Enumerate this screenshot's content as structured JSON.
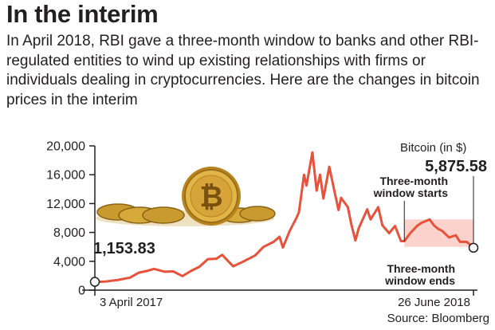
{
  "header": {
    "title": "In the interim",
    "intro": "In April 2018, RBI gave a three-month window to banks and other RBI-regulated entities to wind up existing relationships with firms or individuals dealing in cryptocurrencies. Here are the changes in bitcoin prices in the interim"
  },
  "source": "Source: Bloomberg",
  "colors": {
    "line": "#e8513a",
    "window_band": "#fbd3cc",
    "axis": "#231f20",
    "grid": "#cfcfcf"
  },
  "chart_data": {
    "type": "line",
    "series": [
      {
        "name": "Bitcoin (in $)",
        "points": [
          [
            "2017-04-03",
            1153.83
          ],
          [
            "2017-04-15",
            1180
          ],
          [
            "2017-05-01",
            1420
          ],
          [
            "2017-05-15",
            1750
          ],
          [
            "2017-05-25",
            2420
          ],
          [
            "2017-06-05",
            2700
          ],
          [
            "2017-06-12",
            2950
          ],
          [
            "2017-06-25",
            2550
          ],
          [
            "2017-07-05",
            2600
          ],
          [
            "2017-07-16",
            1950
          ],
          [
            "2017-07-25",
            2600
          ],
          [
            "2017-08-05",
            3250
          ],
          [
            "2017-08-15",
            4300
          ],
          [
            "2017-08-25",
            4350
          ],
          [
            "2017-09-01",
            4900
          ],
          [
            "2017-09-14",
            3300
          ],
          [
            "2017-09-25",
            3900
          ],
          [
            "2017-10-10",
            4800
          ],
          [
            "2017-10-20",
            6000
          ],
          [
            "2017-11-01",
            6700
          ],
          [
            "2017-11-08",
            7400
          ],
          [
            "2017-11-12",
            5900
          ],
          [
            "2017-11-20",
            8200
          ],
          [
            "2017-11-28",
            10000
          ],
          [
            "2017-12-01",
            10800
          ],
          [
            "2017-12-07",
            16000
          ],
          [
            "2017-12-10",
            14500
          ],
          [
            "2017-12-17",
            19100
          ],
          [
            "2017-12-22",
            13800
          ],
          [
            "2017-12-26",
            16000
          ],
          [
            "2017-12-30",
            12700
          ],
          [
            "2018-01-06",
            17100
          ],
          [
            "2018-01-12",
            13800
          ],
          [
            "2018-01-17",
            11100
          ],
          [
            "2018-01-20",
            12800
          ],
          [
            "2018-01-28",
            11500
          ],
          [
            "2018-02-01",
            9200
          ],
          [
            "2018-02-06",
            6900
          ],
          [
            "2018-02-10",
            8600
          ],
          [
            "2018-02-20",
            11200
          ],
          [
            "2018-02-24",
            9800
          ],
          [
            "2018-03-05",
            11500
          ],
          [
            "2018-03-10",
            9000
          ],
          [
            "2018-03-18",
            7900
          ],
          [
            "2018-03-25",
            8900
          ],
          [
            "2018-04-01",
            6800
          ],
          [
            "2018-04-05",
            6800
          ],
          [
            "2018-04-12",
            7900
          ],
          [
            "2018-04-20",
            8900
          ],
          [
            "2018-04-25",
            9300
          ],
          [
            "2018-05-05",
            9800
          ],
          [
            "2018-05-10",
            9000
          ],
          [
            "2018-05-15",
            8500
          ],
          [
            "2018-05-20",
            8200
          ],
          [
            "2018-05-28",
            7300
          ],
          [
            "2018-06-05",
            7600
          ],
          [
            "2018-06-10",
            6700
          ],
          [
            "2018-06-18",
            6700
          ],
          [
            "2018-06-26",
            5875.58
          ]
        ]
      }
    ],
    "x_range": [
      "2017-04-03",
      "2018-06-26"
    ],
    "ylim": [
      0,
      20000
    ],
    "y_ticks": [
      "0",
      "4,000",
      "8,000",
      "12,000",
      "16,000",
      "20,000"
    ],
    "y_tick_values": [
      0,
      4000,
      8000,
      12000,
      16000,
      20000
    ],
    "x_labels": [
      "3 April 2017",
      "26 June 2018"
    ],
    "ylabel": "Bitcoin (in $)",
    "start": {
      "date": "2017-04-03",
      "value": 1153.83,
      "label": "1,153.83"
    },
    "end": {
      "date": "2018-06-26",
      "value": 5875.58,
      "label": "5,875.58"
    },
    "window": {
      "start_date": "2018-04-05",
      "end_date": "2018-06-26",
      "band_ylim": [
        6000,
        9800
      ],
      "start_label": [
        "Three-month",
        "window starts"
      ],
      "end_label": [
        "Three-month",
        "window ends"
      ]
    },
    "grid": false,
    "legend": "none"
  }
}
